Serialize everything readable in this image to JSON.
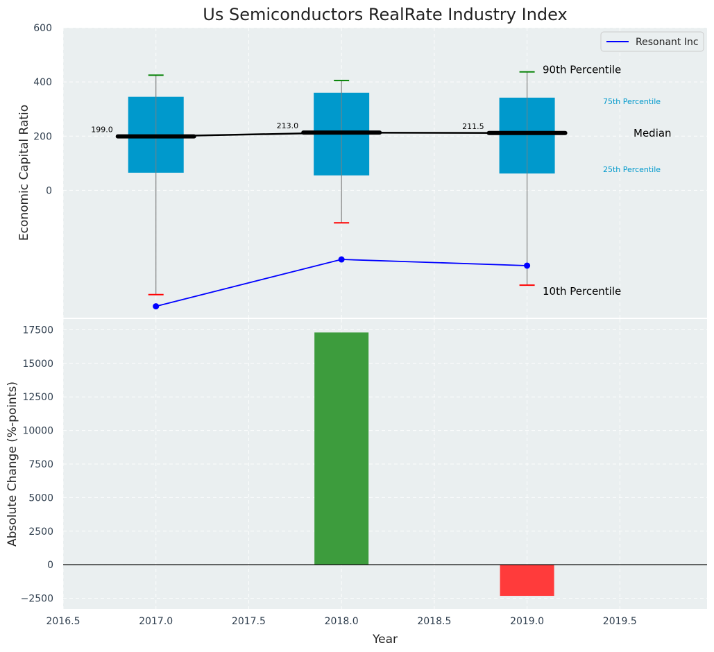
{
  "chart_data": [
    {
      "type": "box",
      "title": "Us Semiconductors RealRate Industry Index",
      "ylabel": "Economic Capital Ratio",
      "ylim": [
        -470,
        600
      ],
      "ytick_values": [
        0,
        200,
        400,
        600
      ],
      "ytick_labels": [
        "0",
        "200",
        "400",
        "600"
      ],
      "xlim": [
        2016.5,
        2019.97
      ],
      "grid": true,
      "boxes": [
        {
          "x": 2017,
          "p10": -385,
          "p25": 65,
          "median": 199.0,
          "p75": 345,
          "p90": 425,
          "median_label": "199.0"
        },
        {
          "x": 2018,
          "p10": -120,
          "p25": 55,
          "median": 213.0,
          "p75": 360,
          "p90": 405,
          "median_label": "213.0"
        },
        {
          "x": 2019,
          "p10": -350,
          "p25": 62,
          "median": 211.5,
          "p75": 342,
          "p90": 437,
          "median_label": "211.5"
        }
      ],
      "series": [
        {
          "name": "Resonant Inc",
          "x": [
            2017,
            2018,
            2019
          ],
          "values": [
            -428,
            -255,
            -278
          ],
          "color": "#0000ff"
        }
      ],
      "annotations": {
        "p90": "90th Percentile",
        "p75": "75th Percentile",
        "median": "Median",
        "p25": "25th Percentile",
        "p10": "10th Percentile"
      },
      "legend": {
        "position": "top-right",
        "label": "Resonant Inc"
      },
      "colors": {
        "box": "#0099cc",
        "median": "#000000",
        "p90_cap": "#008000",
        "p10_cap": "#ff0000",
        "background": "#eaeff0",
        "whisker": "#808080"
      }
    },
    {
      "type": "bar",
      "xlabel": "Year",
      "ylabel": "Absolute Change (%-points)",
      "ylim": [
        -3300,
        18300
      ],
      "ytick_values": [
        -2500,
        0,
        2500,
        5000,
        7500,
        10000,
        12500,
        15000,
        17500
      ],
      "ytick_labels": [
        "−2500",
        "0",
        "2500",
        "5000",
        "7500",
        "10000",
        "12500",
        "15000",
        "17500"
      ],
      "xlim": [
        2016.5,
        2019.97
      ],
      "xtick_values": [
        2016.5,
        2017.0,
        2017.5,
        2018.0,
        2018.5,
        2019.0,
        2019.5
      ],
      "xtick_labels": [
        "2016.5",
        "2017.0",
        "2017.5",
        "2018.0",
        "2018.5",
        "2019.0",
        "2019.5"
      ],
      "grid": true,
      "x": [
        2018,
        2019
      ],
      "values": [
        17300,
        -2320
      ],
      "colors": {
        "positive": "#3d9c3d",
        "negative": "#ff3b3b"
      }
    }
  ]
}
